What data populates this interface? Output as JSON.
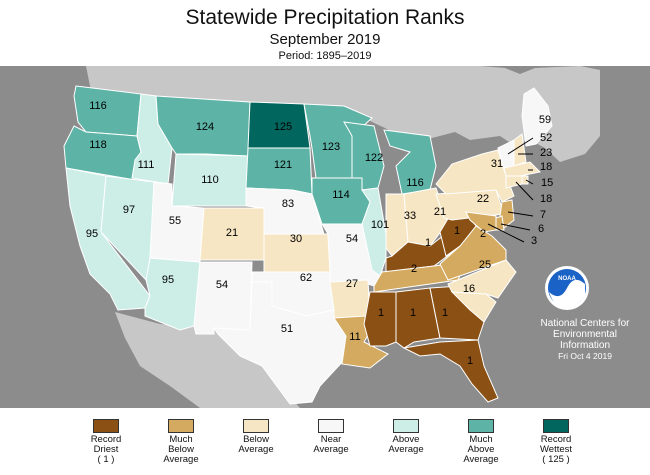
{
  "header": {
    "title": "Statewide Precipitation Ranks",
    "subtitle": "September 2019",
    "period": "Period: 1895–2019"
  },
  "colors": {
    "record_driest": "#8b5014",
    "much_below": "#d3aa5f",
    "below": "#f7e6c3",
    "near": "#f7f7f7",
    "above": "#cdeee7",
    "much_above": "#5db4a6",
    "record_wettest": "#01665e",
    "ocean": "#8c8c8c",
    "land": "#c7c7c7",
    "outline": "#ffffff"
  },
  "states": [
    {
      "id": "WA",
      "rank": "116",
      "category": "much_above"
    },
    {
      "id": "OR",
      "rank": "118",
      "category": "much_above"
    },
    {
      "id": "CA",
      "rank": "95",
      "category": "above"
    },
    {
      "id": "ID",
      "rank": "111",
      "category": "above"
    },
    {
      "id": "NV",
      "rank": "97",
      "category": "above"
    },
    {
      "id": "AZ",
      "rank": "95",
      "category": "above"
    },
    {
      "id": "MT",
      "rank": "124",
      "category": "much_above"
    },
    {
      "id": "WY",
      "rank": "110",
      "category": "above"
    },
    {
      "id": "UT",
      "rank": "55",
      "category": "near"
    },
    {
      "id": "CO",
      "rank": "21",
      "category": "below"
    },
    {
      "id": "NM",
      "rank": "54",
      "category": "near"
    },
    {
      "id": "ND",
      "rank": "125",
      "category": "record_wettest"
    },
    {
      "id": "SD",
      "rank": "121",
      "category": "much_above"
    },
    {
      "id": "NE",
      "rank": "83",
      "category": "near"
    },
    {
      "id": "KS",
      "rank": "30",
      "category": "below"
    },
    {
      "id": "OK",
      "rank": "62",
      "category": "near"
    },
    {
      "id": "TX",
      "rank": "51",
      "category": "near"
    },
    {
      "id": "MN",
      "rank": "123",
      "category": "much_above"
    },
    {
      "id": "IA",
      "rank": "114",
      "category": "much_above"
    },
    {
      "id": "MO",
      "rank": "54",
      "category": "near"
    },
    {
      "id": "AR",
      "rank": "27",
      "category": "below"
    },
    {
      "id": "LA",
      "rank": "11",
      "category": "much_below"
    },
    {
      "id": "WI",
      "rank": "122",
      "category": "much_above"
    },
    {
      "id": "IL",
      "rank": "101",
      "category": "above"
    },
    {
      "id": "MI",
      "rank": "116",
      "category": "much_above"
    },
    {
      "id": "IN",
      "rank": "33",
      "category": "below"
    },
    {
      "id": "OH",
      "rank": "21",
      "category": "below"
    },
    {
      "id": "KY",
      "rank": "1",
      "category": "record_driest"
    },
    {
      "id": "TN",
      "rank": "2",
      "category": "much_below"
    },
    {
      "id": "MS",
      "rank": "1",
      "category": "record_driest"
    },
    {
      "id": "AL",
      "rank": "1",
      "category": "record_driest"
    },
    {
      "id": "GA",
      "rank": "1",
      "category": "record_driest"
    },
    {
      "id": "FL",
      "rank": "1",
      "category": "record_driest"
    },
    {
      "id": "SC",
      "rank": "16",
      "category": "below"
    },
    {
      "id": "NC",
      "rank": "25",
      "category": "below"
    },
    {
      "id": "VA",
      "rank": "2",
      "category": "much_below"
    },
    {
      "id": "WV",
      "rank": "1",
      "category": "record_driest"
    },
    {
      "id": "PA",
      "rank": "22",
      "category": "below"
    },
    {
      "id": "NY",
      "rank": "31",
      "category": "below"
    },
    {
      "id": "ME",
      "rank": "59",
      "category": "near"
    },
    {
      "id": "VT",
      "rank": "52",
      "category": "near"
    },
    {
      "id": "NH",
      "rank": "23",
      "category": "below"
    },
    {
      "id": "MA",
      "rank": "18",
      "category": "below"
    },
    {
      "id": "RI",
      "rank": "15",
      "category": "below"
    },
    {
      "id": "CT",
      "rank": "18",
      "category": "below"
    },
    {
      "id": "NJ",
      "rank": "7",
      "category": "much_below"
    },
    {
      "id": "DE",
      "rank": "6",
      "category": "much_below"
    },
    {
      "id": "MD",
      "rank": "3",
      "category": "much_below"
    }
  ],
  "legend": [
    {
      "key": "record_driest",
      "label": "Record\nDriest\n( 1 )"
    },
    {
      "key": "much_below",
      "label": "Much\nBelow\nAverage"
    },
    {
      "key": "below",
      "label": "Below\nAverage"
    },
    {
      "key": "near",
      "label": "Near\nAverage"
    },
    {
      "key": "above",
      "label": "Above\nAverage"
    },
    {
      "key": "much_above",
      "label": "Much\nAbove\nAverage"
    },
    {
      "key": "record_wettest",
      "label": "Record\nWettest\n( 125 )"
    }
  ],
  "credit": {
    "line1": "National Centers for",
    "line2": "Environmental",
    "line3": "Information",
    "date": "Fri Oct  4 2019"
  },
  "logo_text": "NOAA"
}
